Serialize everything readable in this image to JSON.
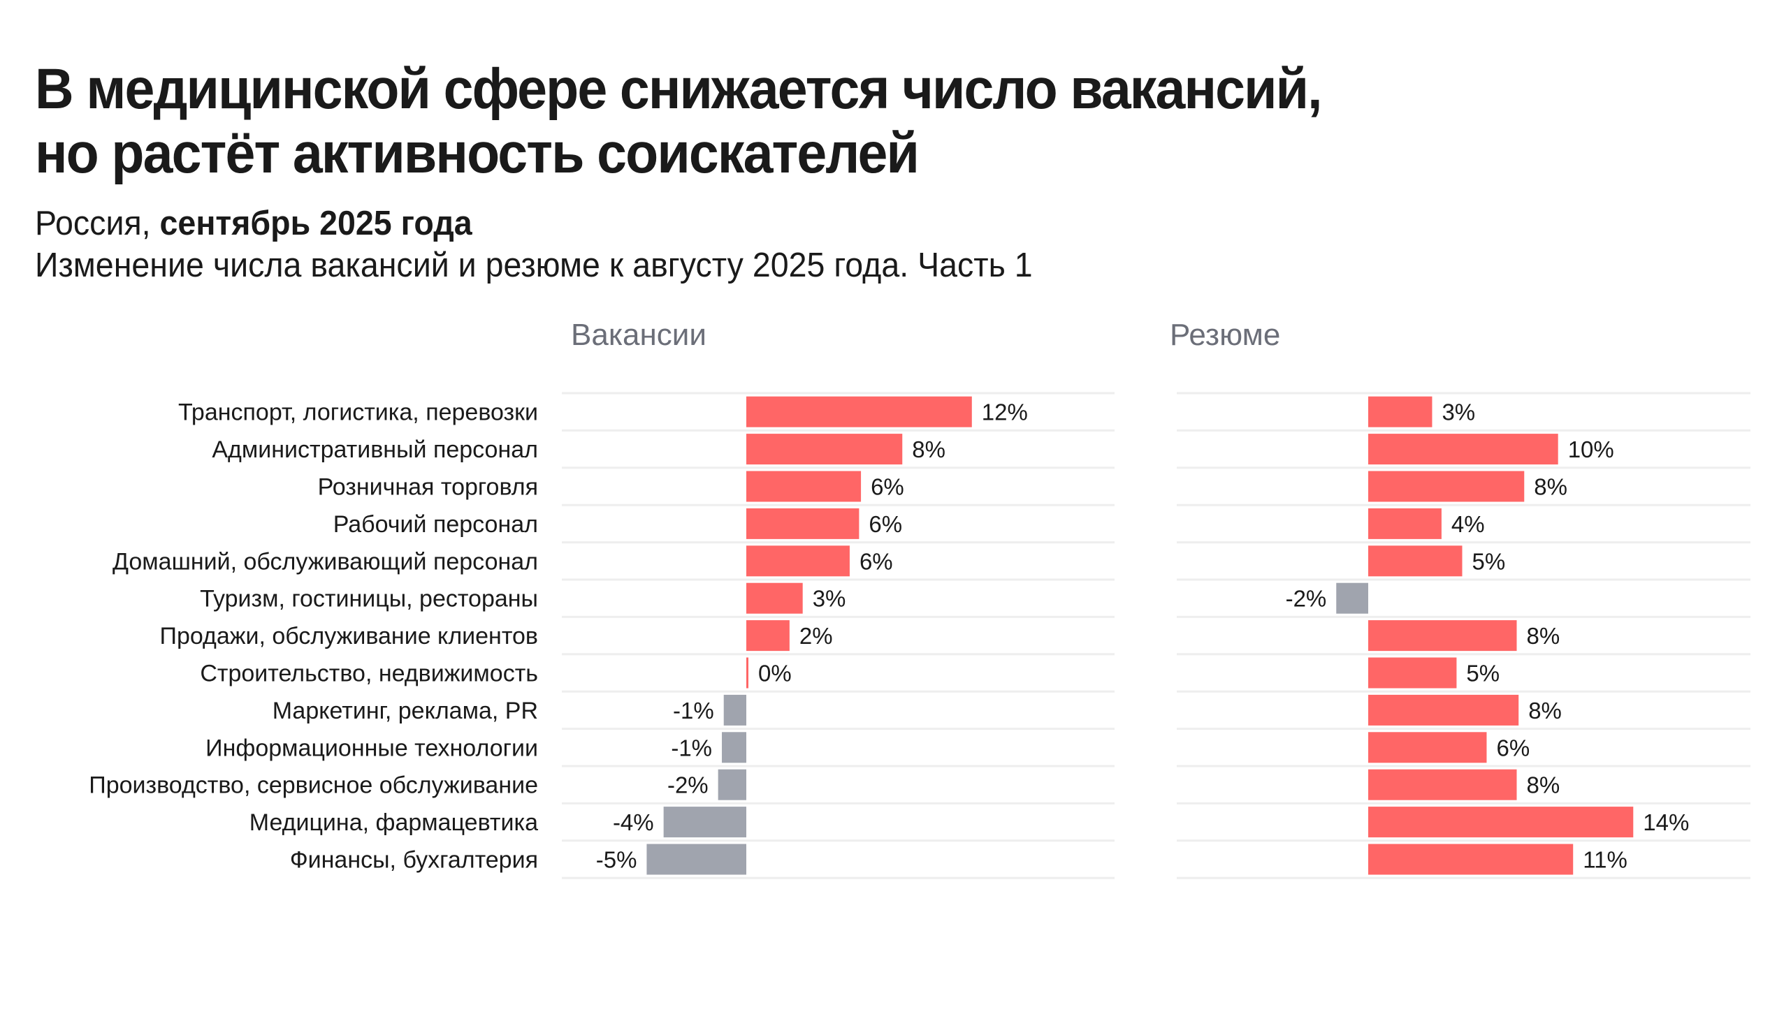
{
  "header": {
    "title_line1": "В медицинской сфере снижается число вакансий,",
    "title_line2": "но растёт активность соискателей",
    "subtitle_region": "Россия,",
    "subtitle_period": "сентябрь 2025 года",
    "subtitle_description": "Изменение числа вакансий и резюме к августу 2025 года. Часть 1"
  },
  "colors": {
    "positive": "#ff6666",
    "negative": "#a0a4ae",
    "gridline": "#eeeeee",
    "panel_title": "#6b6e78"
  },
  "chart_data": {
    "type": "bar",
    "orientation": "horizontal",
    "title": "В медицинской сфере снижается число вакансий, но растёт активность соискателей",
    "subtitle": "Россия, сентябрь 2025 года. Изменение числа вакансий и резюме к августу 2025 года. Часть 1",
    "unit": "%",
    "grid": true,
    "categories": [
      "Транспорт, логистика, перевозки",
      "Административный персонал",
      "Розничная торговля",
      "Рабочий персонал",
      "Домашний, обслуживающий персонал",
      "Туризм, гостиницы, рестораны",
      "Продажи, обслуживание клиентов",
      "Строительство, недвижимость",
      "Маркетинг, реклама, PR",
      "Информационные технологии",
      "Производство, сервисное обслуживание",
      "Медицина, фармацевтика",
      "Финансы, бухгалтерия"
    ],
    "series": [
      {
        "name": "Вакансии",
        "values": [
          12.0,
          8.3,
          6.1,
          6.0,
          5.5,
          3.0,
          2.3,
          0.1,
          -1.2,
          -1.3,
          -1.5,
          -4.4,
          -5.3
        ],
        "labels": [
          "12%",
          "8%",
          "6%",
          "6%",
          "6%",
          "3%",
          "2%",
          "0%",
          "-1%",
          "-1%",
          "-2%",
          "-4%",
          "-5%"
        ],
        "xlim": [
          -6,
          12
        ]
      },
      {
        "name": "Резюме",
        "values": [
          3.4,
          10.1,
          8.3,
          3.9,
          5.0,
          -1.7,
          7.9,
          4.7,
          8.0,
          6.3,
          7.9,
          14.1,
          10.9
        ],
        "labels": [
          "3%",
          "10%",
          "8%",
          "4%",
          "5%",
          "-2%",
          "8%",
          "5%",
          "8%",
          "6%",
          "8%",
          "14%",
          "11%"
        ],
        "xlim": [
          -6,
          15
        ]
      }
    ]
  }
}
